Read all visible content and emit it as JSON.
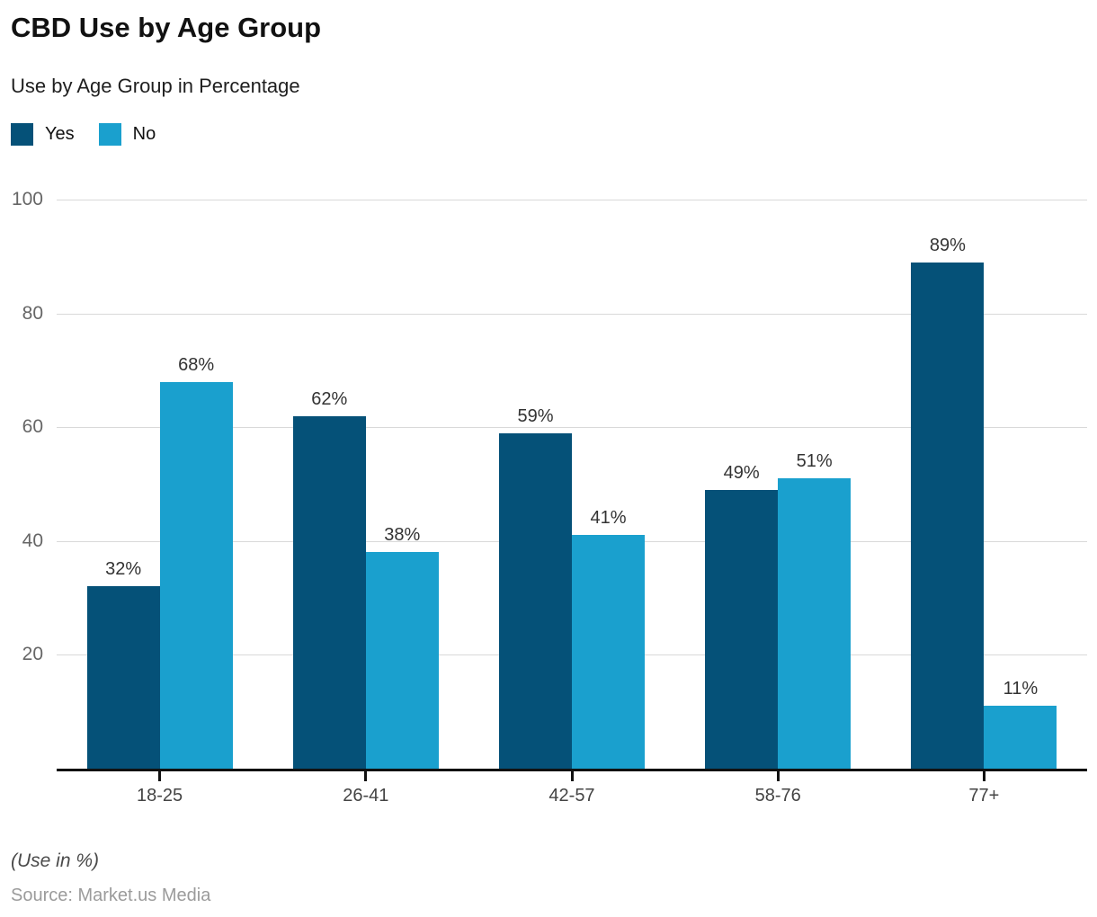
{
  "header": {
    "title": "CBD Use by Age Group",
    "subtitle": "Use by Age Group in Percentage"
  },
  "legend": {
    "items": [
      {
        "label": "Yes",
        "color": "#055178"
      },
      {
        "label": "No",
        "color": "#1aa0ce"
      }
    ]
  },
  "footer": {
    "note": "(Use in %)",
    "source": "Source: Market.us Media"
  },
  "chart_data": {
    "type": "bar",
    "title": "CBD Use by Age Group",
    "subtitle": "Use by Age Group in Percentage",
    "categories": [
      "18-25",
      "26-41",
      "42-57",
      "58-76",
      "77+"
    ],
    "series": [
      {
        "name": "Yes",
        "color": "#055178",
        "values": [
          32,
          62,
          59,
          49,
          89
        ]
      },
      {
        "name": "No",
        "color": "#1aa0ce",
        "values": [
          68,
          38,
          41,
          51,
          11
        ]
      }
    ],
    "value_suffix": "%",
    "xlabel": "",
    "ylabel": "",
    "ylim": [
      0,
      100
    ],
    "yticks": [
      20,
      40,
      60,
      80,
      100
    ],
    "grid": true,
    "legend_position": "top-left",
    "colors": {
      "grid": "#d9d9d9",
      "axis": "#111111",
      "y_tick_text": "#666666",
      "x_tick_text": "#444444",
      "data_label_text": "#333333"
    }
  }
}
